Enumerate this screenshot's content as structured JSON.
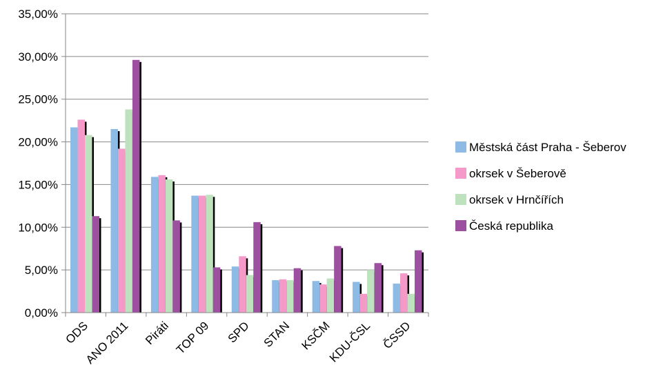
{
  "chart_data": {
    "type": "bar",
    "categories": [
      "ODS",
      "ANO 2011",
      "Piráti",
      "TOP 09",
      "SPD",
      "STAN",
      "KSČM",
      "KDU-ČSL",
      "ČSSD"
    ],
    "series": [
      {
        "name": "Městská část Praha - Šeberov",
        "color": "#8DBBE6",
        "values": [
          21.7,
          21.5,
          15.9,
          13.7,
          5.4,
          3.8,
          3.7,
          3.6,
          3.4
        ]
      },
      {
        "name": "okrsek v Šeberově",
        "color": "#F59AC8",
        "values": [
          22.6,
          19.2,
          16.1,
          13.7,
          6.6,
          3.9,
          3.3,
          2.2,
          4.6
        ]
      },
      {
        "name": "okrsek v Hrnčířích",
        "color": "#BDE2BD",
        "values": [
          20.8,
          23.8,
          15.6,
          13.8,
          4.4,
          3.8,
          4.0,
          5.0,
          2.2
        ]
      },
      {
        "name": "Česká republika",
        "color": "#9E50A0",
        "values": [
          11.3,
          29.6,
          10.8,
          5.3,
          10.6,
          5.2,
          7.8,
          5.8,
          7.3
        ]
      }
    ],
    "ylim": [
      0,
      35
    ],
    "yticks": [
      0,
      5,
      10,
      15,
      20,
      25,
      30,
      35
    ],
    "ytick_labels": [
      "0,00%",
      "5,00%",
      "10,00%",
      "15,00%",
      "20,00%",
      "25,00%",
      "30,00%",
      "35,00%"
    ],
    "grid": true,
    "legend_position": "right"
  }
}
